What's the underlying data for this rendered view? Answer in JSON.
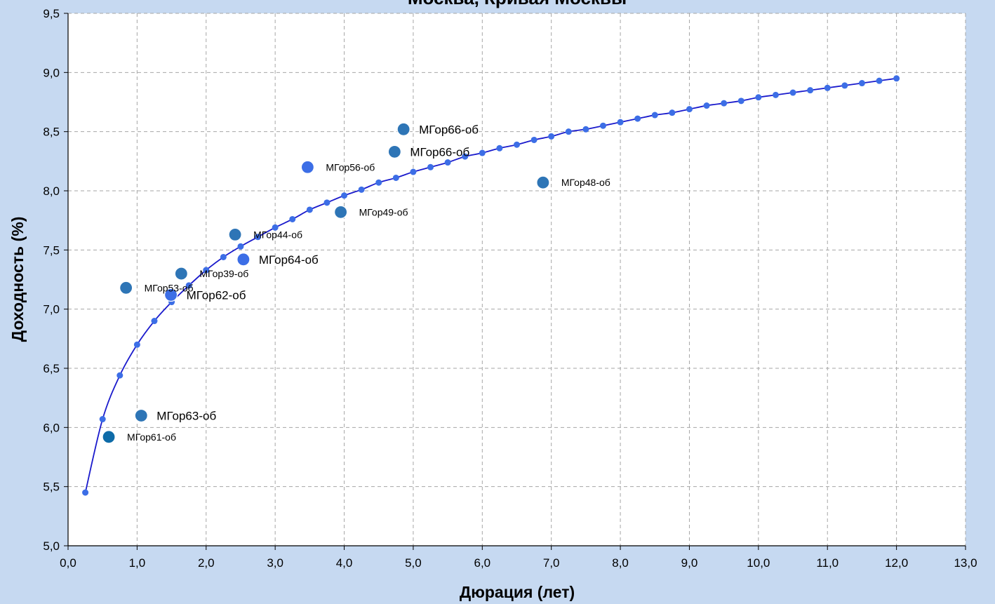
{
  "chart_data": {
    "type": "scatter",
    "title": "Москва, Кривая Москвы",
    "xlabel": "Дюрация (лет)",
    "ylabel": "Доходность (%)",
    "xlim": [
      0,
      13
    ],
    "ylim": [
      5.0,
      9.5
    ],
    "x_ticks": [
      "0,0",
      "1,0",
      "2,0",
      "3,0",
      "4,0",
      "5,0",
      "6,0",
      "7,0",
      "8,0",
      "9,0",
      "10,0",
      "11,0",
      "12,0",
      "13,0"
    ],
    "y_ticks": [
      "5,0",
      "5,5",
      "6,0",
      "6,5",
      "7,0",
      "7,5",
      "8,0",
      "8,5",
      "9,0",
      "9,5"
    ],
    "grid": true,
    "legend": "none",
    "curve": {
      "color": "#1a1acc",
      "marker_color": "#3c6ee6",
      "x": [
        0.25,
        0.5,
        0.75,
        1.0,
        1.25,
        1.5,
        1.75,
        2.0,
        2.25,
        2.5,
        2.75,
        3.0,
        3.25,
        3.5,
        3.75,
        4.0,
        4.25,
        4.5,
        4.75,
        5.0,
        5.25,
        5.5,
        5.75,
        6.0,
        6.25,
        6.5,
        6.75,
        7.0,
        7.25,
        7.5,
        7.75,
        8.0,
        8.25,
        8.5,
        8.75,
        9.0,
        9.25,
        9.5,
        9.75,
        10.0,
        10.25,
        10.5,
        10.75,
        11.0,
        11.25,
        11.5,
        11.75,
        12.0
      ],
      "y": [
        5.45,
        6.07,
        6.44,
        6.7,
        6.9,
        7.06,
        7.2,
        7.33,
        7.44,
        7.53,
        7.61,
        7.69,
        7.76,
        7.84,
        7.9,
        7.96,
        8.01,
        8.07,
        8.11,
        8.16,
        8.2,
        8.24,
        8.29,
        8.32,
        8.36,
        8.39,
        8.43,
        8.46,
        8.5,
        8.52,
        8.55,
        8.58,
        8.61,
        8.64,
        8.66,
        8.69,
        8.72,
        8.74,
        8.76,
        8.79,
        8.81,
        8.83,
        8.85,
        8.87,
        8.89,
        8.91,
        8.93,
        8.95
      ]
    },
    "bonds": [
      {
        "name": "МГор66-об",
        "x": 4.86,
        "y": 8.52,
        "color": "#2e75b6",
        "label_size": "large"
      },
      {
        "name": "МГор66-об",
        "x": 4.73,
        "y": 8.33,
        "color": "#2e75b6",
        "label_size": "large"
      },
      {
        "name": "МГор56-об",
        "x": 3.47,
        "y": 8.2,
        "color": "#3c6ee6",
        "label_size": "small"
      },
      {
        "name": "МГор48-об",
        "x": 6.88,
        "y": 8.07,
        "color": "#2e75b6",
        "label_size": "small"
      },
      {
        "name": "МГор49-об",
        "x": 3.95,
        "y": 7.82,
        "color": "#2e75b6",
        "label_size": "small"
      },
      {
        "name": "МГор44-об",
        "x": 2.42,
        "y": 7.63,
        "color": "#2e75b6",
        "label_size": "small"
      },
      {
        "name": "МГор64-об",
        "x": 2.54,
        "y": 7.42,
        "color": "#3c6ee6",
        "label_size": "large"
      },
      {
        "name": "МГор39-об",
        "x": 1.64,
        "y": 7.3,
        "color": "#2e75b6",
        "label_size": "small"
      },
      {
        "name": "МГор53-об",
        "x": 0.84,
        "y": 7.18,
        "color": "#2e75b6",
        "label_size": "small"
      },
      {
        "name": "МГор62-об",
        "x": 1.49,
        "y": 7.12,
        "color": "#3c6ee6",
        "label_size": "large"
      },
      {
        "name": "МГор63-об",
        "x": 1.06,
        "y": 6.1,
        "color": "#2e75b6",
        "label_size": "large"
      },
      {
        "name": "МГор61-об",
        "x": 0.59,
        "y": 5.92,
        "color": "#0e6ba8",
        "label_size": "small"
      }
    ]
  }
}
